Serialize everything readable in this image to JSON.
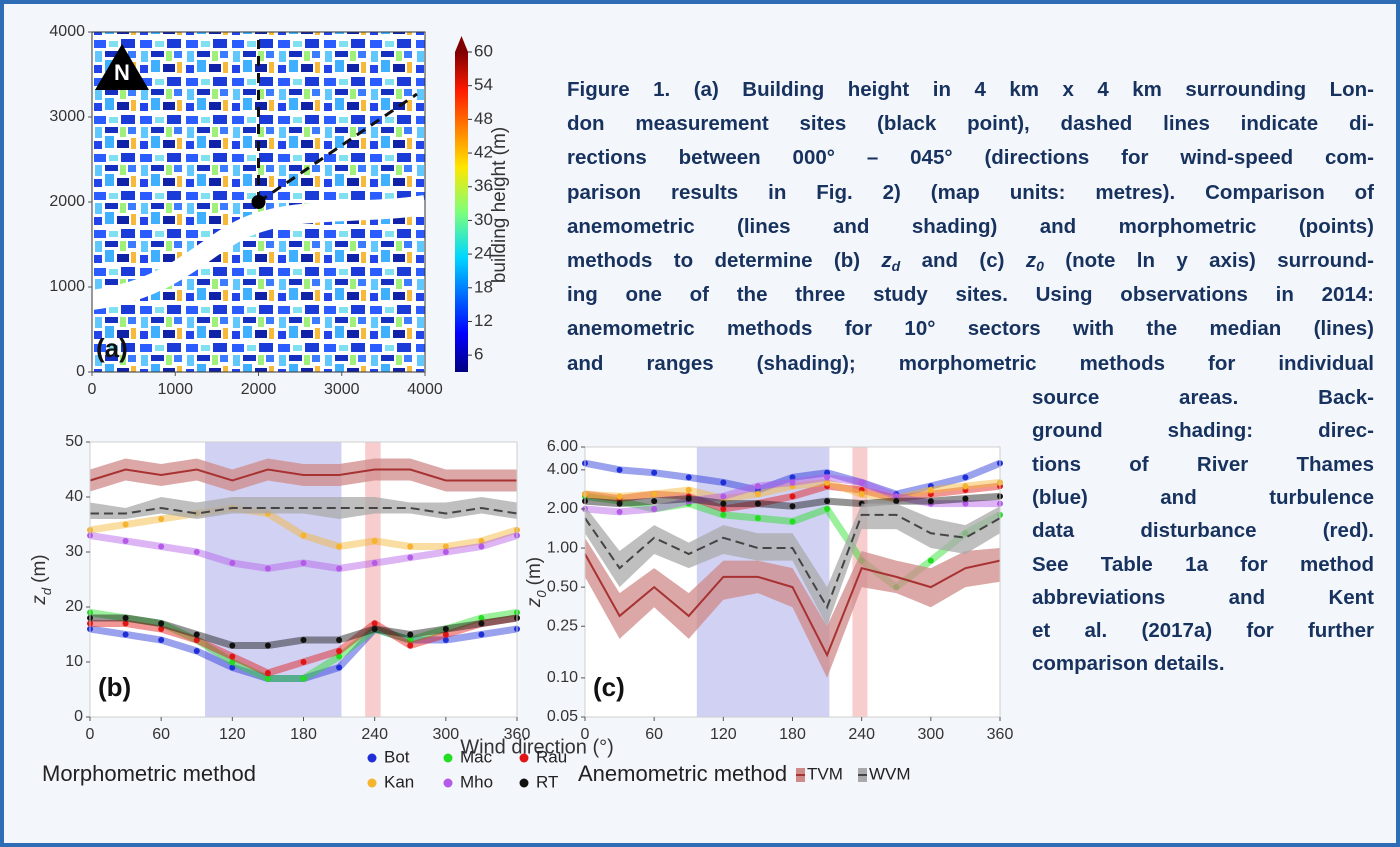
{
  "caption": {
    "lines": [
      [
        {
          "text": "Figure 1. (a) Building height in 4 km x 4 km surrounding Lon-"
        }
      ],
      [
        {
          "text": "don measurement sites (black point), dashed lines indicate di-"
        }
      ],
      [
        {
          "text": "rections between 000° – 045° (directions for wind-speed com-"
        }
      ],
      [
        {
          "text": "parison results in Fig. 2) (map units: metres). Comparison of"
        }
      ],
      [
        {
          "text": "anemometric (lines and shading) and morphometric (points)"
        }
      ],
      [
        {
          "text": "methods to determine (b) "
        },
        {
          "text": "z",
          "style": "italic"
        },
        {
          "text": "d",
          "style": "italic-sub"
        },
        {
          "text": " and (c) "
        },
        {
          "text": "z",
          "style": "italic"
        },
        {
          "text": "0",
          "style": "italic-sub"
        },
        {
          "text": " (note ln y axis) surround-"
        }
      ],
      [
        {
          "text": "ing one of the three study sites. Using observations in 2014:"
        }
      ],
      [
        {
          "text": "anemometric methods for 10° sectors with the median (lines)"
        }
      ],
      [
        {
          "text": "and ranges (shading); morphometric methods for individual"
        }
      ],
      [
        {
          "text": "source areas. Back-"
        }
      ],
      [
        {
          "text": "ground shading: direc-"
        }
      ],
      [
        {
          "text": "tions of River Thames"
        }
      ],
      [
        {
          "text": "(blue) and turbulence"
        }
      ],
      [
        {
          "text": "data disturbance (red)."
        }
      ],
      [
        {
          "text": "See Table 1a for method"
        }
      ],
      [
        {
          "text": "abbreviations and Kent"
        }
      ],
      [
        {
          "text": "et al. (2017a) for further"
        }
      ],
      [
        {
          "text": "comparison details."
        }
      ]
    ]
  },
  "legend": {
    "morphometric_title": "Morphometric method",
    "anemometric_title": "Anemometric method"
  },
  "chart_data": [
    {
      "type": "map",
      "panel_label": "(a)",
      "north_label": "N",
      "xlim": [
        0,
        4000
      ],
      "ylim": [
        0,
        4000
      ],
      "xticks": [
        0,
        1000,
        2000,
        3000,
        4000
      ],
      "yticks": [
        0,
        1000,
        2000,
        3000,
        4000
      ],
      "site": {
        "x": 2000,
        "y": 2000
      },
      "colorbar": {
        "label": "building height (m)",
        "lim": [
          3,
          60
        ],
        "ticks": [
          6,
          12,
          18,
          24,
          30,
          36,
          42,
          48,
          54,
          60
        ]
      }
    },
    {
      "type": "line",
      "panel_label": "(b)",
      "xlabel": "Wind direction (°)",
      "ylabel": {
        "symbol": "z",
        "subscript": "d",
        "unit": "(m)"
      },
      "xlim": [
        0,
        360
      ],
      "ylim": [
        0,
        50
      ],
      "xticks": [
        0,
        60,
        120,
        180,
        240,
        300,
        360
      ],
      "yticks": [
        0,
        10,
        20,
        30,
        40,
        50
      ],
      "log_y": false,
      "shading": [
        {
          "from": 97,
          "to": 212,
          "color": "#c9c9f2"
        },
        {
          "from": 232,
          "to": 245,
          "color": "#f6c4c4"
        }
      ],
      "x": [
        0,
        30,
        60,
        90,
        120,
        150,
        180,
        210,
        240,
        270,
        300,
        330,
        360
      ],
      "series": [
        {
          "name": "Bot",
          "style": "scatter",
          "color": "#1f2fd8",
          "values": [
            16,
            15,
            14,
            12,
            9,
            7,
            7,
            9,
            16,
            14,
            14,
            15,
            16
          ]
        },
        {
          "name": "Mac",
          "style": "scatter",
          "color": "#22dd22",
          "values": [
            19,
            18,
            17,
            14,
            10,
            7,
            7,
            11,
            16,
            14,
            16,
            18,
            19
          ]
        },
        {
          "name": "Rau",
          "style": "scatter",
          "color": "#e01515",
          "values": [
            17,
            17,
            16,
            14,
            11,
            8,
            10,
            12,
            17,
            13,
            15,
            17,
            18
          ]
        },
        {
          "name": "Kan",
          "style": "scatter",
          "color": "#f5b32e",
          "values": [
            34,
            35,
            36,
            37,
            38,
            37,
            33,
            31,
            32,
            31,
            31,
            32,
            34
          ]
        },
        {
          "name": "Mho",
          "style": "scatter",
          "color": "#b35be8",
          "values": [
            33,
            32,
            31,
            30,
            28,
            27,
            28,
            27,
            28,
            29,
            30,
            31,
            33
          ]
        },
        {
          "name": "RT",
          "style": "scatter",
          "color": "#111111",
          "values": [
            18,
            18,
            17,
            15,
            13,
            13,
            14,
            14,
            16,
            15,
            16,
            17,
            18
          ]
        },
        {
          "name": "TVM",
          "style": "band",
          "color": "#a83232",
          "band_color": "#cf8a8a",
          "dash": false,
          "values": [
            43,
            45,
            44,
            45,
            43,
            45,
            44,
            44,
            45,
            45,
            43,
            43,
            43
          ],
          "low": [
            41,
            43,
            42,
            43,
            41,
            43,
            42,
            42,
            43,
            43,
            41,
            41,
            41
          ],
          "high": [
            45,
            47,
            46,
            47,
            45,
            47,
            46,
            46,
            47,
            47,
            45,
            45,
            45
          ]
        },
        {
          "name": "WVM",
          "style": "band",
          "color": "#444444",
          "band_color": "#a9a9a9",
          "dash": true,
          "values": [
            37,
            37,
            38,
            37,
            38,
            38,
            38,
            38,
            38,
            38,
            37,
            38,
            37
          ],
          "low": [
            36,
            36,
            37,
            36,
            37,
            37,
            37,
            36,
            37,
            37,
            36,
            37,
            36
          ],
          "high": [
            39,
            38,
            40,
            39,
            40,
            40,
            40,
            40,
            40,
            39,
            39,
            40,
            39
          ]
        }
      ]
    },
    {
      "type": "line",
      "panel_label": "(c)",
      "ylabel": {
        "symbol": "z",
        "subscript": "0",
        "unit": "(m)"
      },
      "xlim": [
        0,
        360
      ],
      "ylim": [
        0.05,
        6
      ],
      "xticks": [
        0,
        60,
        120,
        180,
        240,
        300,
        360
      ],
      "yticks": [
        {
          "value": 0.05,
          "label": "0.05"
        },
        {
          "value": 0.1,
          "label": "0.10"
        },
        0.25,
        {
          "value": 0.5,
          "label": "0.50"
        },
        {
          "value": 1,
          "label": "1.00"
        },
        {
          "value": 2,
          "label": "2.00"
        },
        {
          "value": 4,
          "label": "4.00"
        },
        {
          "value": 6,
          "label": "6.00"
        }
      ],
      "log_y": true,
      "shading": [
        {
          "from": 97,
          "to": 212,
          "color": "#c9c9f2"
        },
        {
          "from": 232,
          "to": 245,
          "color": "#f6c4c4"
        }
      ],
      "x": [
        0,
        30,
        60,
        90,
        120,
        150,
        180,
        210,
        240,
        270,
        300,
        330,
        360
      ],
      "series": [
        {
          "style": "scatter",
          "color": "#1f2fd8",
          "values": [
            4.5,
            4,
            3.8,
            3.5,
            3.2,
            2.8,
            3.5,
            3.8,
            3.2,
            2.6,
            3,
            3.5,
            4.5
          ]
        },
        {
          "style": "scatter",
          "color": "#22dd22",
          "values": [
            2.5,
            2.3,
            2,
            2.2,
            1.8,
            1.7,
            1.6,
            2,
            0.8,
            0.5,
            0.8,
            1.3,
            1.8
          ]
        },
        {
          "style": "scatter",
          "color": "#e01515",
          "values": [
            2.6,
            2.4,
            2.6,
            2.5,
            2,
            2.2,
            2.5,
            3,
            2.8,
            2.4,
            2.6,
            2.8,
            3
          ]
        },
        {
          "style": "scatter",
          "color": "#f5b32e",
          "values": [
            2.6,
            2.5,
            2.6,
            2.8,
            2.4,
            2.6,
            3,
            3.2,
            2.6,
            2.4,
            2.8,
            3,
            3.2
          ]
        },
        {
          "style": "scatter",
          "color": "#b35be8",
          "values": [
            2,
            1.9,
            2,
            2.3,
            2.5,
            3,
            3.2,
            3.5,
            3.2,
            2.5,
            2.2,
            2.2,
            2.2
          ]
        },
        {
          "style": "scatter",
          "color": "#111111",
          "values": [
            2.3,
            2.2,
            2.3,
            2.4,
            2.2,
            2.2,
            2.1,
            2.3,
            2.2,
            2.3,
            2.3,
            2.4,
            2.5
          ]
        },
        {
          "style": "band",
          "color": "#a83232",
          "band_color": "#cf8a8a",
          "dash": false,
          "values": [
            0.9,
            0.3,
            0.5,
            0.3,
            0.6,
            0.6,
            0.5,
            0.15,
            0.7,
            0.6,
            0.5,
            0.7,
            0.8
          ],
          "low": [
            0.6,
            0.2,
            0.35,
            0.2,
            0.4,
            0.45,
            0.35,
            0.1,
            0.5,
            0.45,
            0.35,
            0.5,
            0.55
          ],
          "high": [
            1.2,
            0.45,
            0.7,
            0.45,
            0.8,
            0.8,
            0.7,
            0.25,
            0.95,
            0.8,
            0.7,
            0.95,
            1
          ]
        },
        {
          "style": "band",
          "color": "#444444",
          "band_color": "#a9a9a9",
          "dash": true,
          "values": [
            1.7,
            0.7,
            1.2,
            0.9,
            1.2,
            1,
            1,
            0.35,
            1.8,
            1.8,
            1.3,
            1.2,
            1.7
          ],
          "low": [
            1.3,
            0.5,
            0.9,
            0.7,
            0.9,
            0.8,
            0.8,
            0.25,
            1.4,
            1.4,
            1,
            0.9,
            1.3
          ],
          "high": [
            2.1,
            0.95,
            1.5,
            1.1,
            1.5,
            1.3,
            1.3,
            0.5,
            2.2,
            2.2,
            1.7,
            1.5,
            2.1
          ]
        }
      ]
    }
  ]
}
